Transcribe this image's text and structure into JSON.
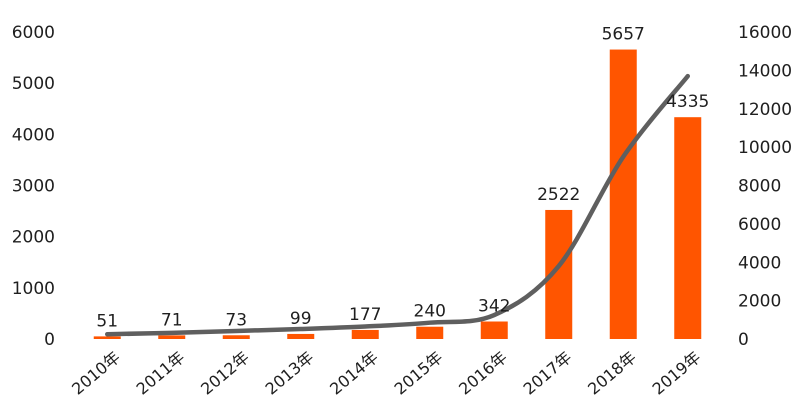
{
  "chart_data": {
    "type": "bar",
    "categories": [
      "2010年",
      "2011年",
      "2012年",
      "2013年",
      "2014年",
      "2015年",
      "2016年",
      "2017年",
      "2018年",
      "2019年"
    ],
    "series": [
      {
        "type": "bar",
        "axis": "left",
        "color": "#ff5500",
        "values": [
          51,
          71,
          73,
          99,
          177,
          240,
          342,
          2522,
          5657,
          4335
        ],
        "data_labels": [
          "51",
          "71",
          "73",
          "99",
          "177",
          "240",
          "342",
          "2522",
          "5657",
          "4335"
        ]
      },
      {
        "type": "line",
        "axis": "right",
        "color": "#5f5f5f",
        "values": [
          250,
          320,
          420,
          520,
          650,
          850,
          1250,
          3800,
          9500,
          13700
        ]
      }
    ],
    "ylim": [
      0,
      6000
    ],
    "yticks": [
      "0",
      "1000",
      "2000",
      "3000",
      "4000",
      "5000",
      "6000"
    ],
    "y2lim": [
      0,
      16000
    ],
    "y2ticks": [
      "0",
      "2000",
      "4000",
      "6000",
      "8000",
      "10000",
      "12000",
      "14000",
      "16000"
    ],
    "grid": false,
    "legend": "none"
  }
}
